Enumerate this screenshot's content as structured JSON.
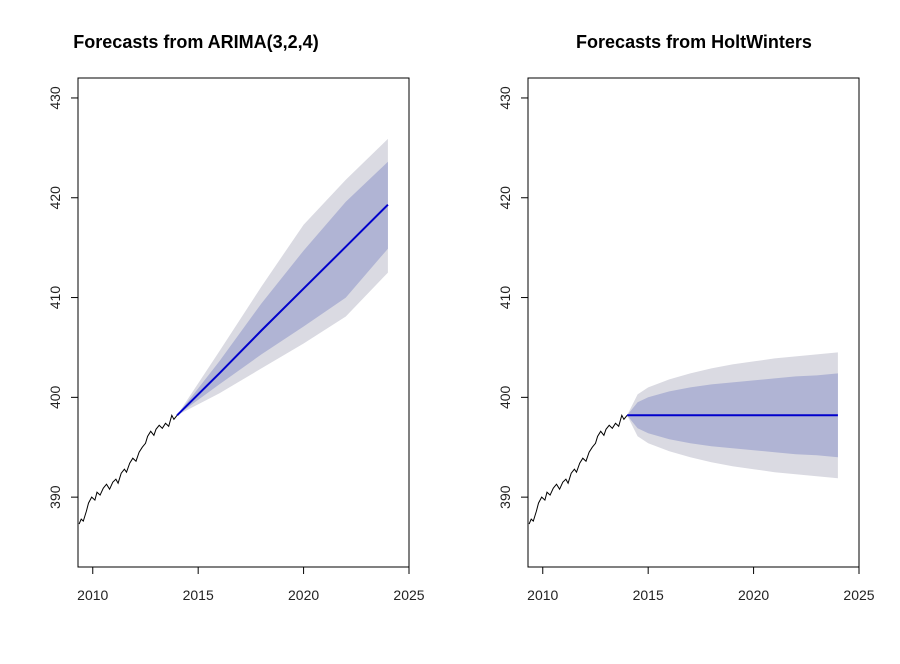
{
  "chart_data": [
    {
      "type": "line",
      "title": "Forecasts from ARIMA(3,2,4)",
      "xlabel": "",
      "ylabel": "",
      "xlim": [
        2009.3,
        2025.0
      ],
      "ylim": [
        383.0,
        432.0
      ],
      "xticks": [
        2010,
        2015,
        2020,
        2025
      ],
      "yticks": [
        390,
        400,
        410,
        420,
        430
      ],
      "grid": false,
      "history": {
        "x": [
          2009.35,
          2009.45,
          2009.55,
          2009.7,
          2009.8,
          2009.95,
          2010.1,
          2010.2,
          2010.35,
          2010.5,
          2010.65,
          2010.8,
          2010.95,
          2011.1,
          2011.2,
          2011.35,
          2011.5,
          2011.6,
          2011.75,
          2011.9,
          2012.05,
          2012.2,
          2012.35,
          2012.5,
          2012.6,
          2012.75,
          2012.9,
          2013.0,
          2013.15,
          2013.3,
          2013.45,
          2013.6,
          2013.75,
          2013.85,
          2014.0
        ],
        "y": [
          387.3,
          387.8,
          387.6,
          388.6,
          389.4,
          390.0,
          389.7,
          390.5,
          390.2,
          390.9,
          391.3,
          390.8,
          391.5,
          391.8,
          391.4,
          392.4,
          392.8,
          392.5,
          393.4,
          393.9,
          393.6,
          394.5,
          395.0,
          395.4,
          396.1,
          396.6,
          396.2,
          396.8,
          397.2,
          396.9,
          397.4,
          397.1,
          398.2,
          397.8,
          398.2
        ]
      },
      "forecast": {
        "x": [
          2014.0,
          2016.0,
          2018.0,
          2020.0,
          2022.0,
          2024.0
        ],
        "mean": [
          398.2,
          402.4,
          406.7,
          410.9,
          415.1,
          419.3
        ],
        "lo80": [
          398.2,
          401.3,
          404.3,
          407.1,
          410.0,
          414.9
        ],
        "hi80": [
          398.2,
          403.6,
          409.4,
          414.7,
          419.6,
          423.6
        ],
        "lo95": [
          398.2,
          400.4,
          402.9,
          405.4,
          408.1,
          412.5
        ],
        "hi95": [
          398.2,
          404.6,
          411.1,
          417.3,
          421.8,
          425.9
        ]
      },
      "colors": {
        "history": "#000000",
        "mean": "#0000cc",
        "band80": "#b0b4d4",
        "band95": "#dadae2"
      }
    },
    {
      "type": "line",
      "title": "Forecasts from HoltWinters",
      "xlabel": "",
      "ylabel": "",
      "xlim": [
        2009.3,
        2025.0
      ],
      "ylim": [
        383.0,
        432.0
      ],
      "xticks": [
        2010,
        2015,
        2020,
        2025
      ],
      "yticks": [
        390,
        400,
        410,
        420,
        430
      ],
      "grid": false,
      "history": {
        "x": [
          2009.35,
          2009.45,
          2009.55,
          2009.7,
          2009.8,
          2009.95,
          2010.1,
          2010.2,
          2010.35,
          2010.5,
          2010.65,
          2010.8,
          2010.95,
          2011.1,
          2011.2,
          2011.35,
          2011.5,
          2011.6,
          2011.75,
          2011.9,
          2012.05,
          2012.2,
          2012.35,
          2012.5,
          2012.6,
          2012.75,
          2012.9,
          2013.0,
          2013.15,
          2013.3,
          2013.45,
          2013.6,
          2013.75,
          2013.85,
          2014.0
        ],
        "y": [
          387.3,
          387.8,
          387.6,
          388.6,
          389.4,
          390.0,
          389.7,
          390.5,
          390.2,
          390.9,
          391.3,
          390.8,
          391.5,
          391.8,
          391.4,
          392.4,
          392.8,
          392.5,
          393.4,
          393.9,
          393.6,
          394.5,
          395.0,
          395.4,
          396.1,
          396.6,
          396.2,
          396.8,
          397.2,
          396.9,
          397.4,
          397.1,
          398.2,
          397.8,
          398.2
        ]
      },
      "forecast": {
        "x": [
          2014.0,
          2014.5,
          2015.0,
          2016.0,
          2017.0,
          2018.0,
          2019.0,
          2020.0,
          2021.0,
          2022.0,
          2023.0,
          2024.0
        ],
        "mean": [
          398.2,
          398.2,
          398.2,
          398.2,
          398.2,
          398.2,
          398.2,
          398.2,
          398.2,
          398.2,
          398.2,
          398.2
        ],
        "lo80": [
          398.2,
          396.9,
          396.4,
          395.8,
          395.4,
          395.1,
          394.9,
          394.7,
          394.5,
          394.3,
          394.2,
          394.0
        ],
        "hi80": [
          398.2,
          399.5,
          400.0,
          400.6,
          401.0,
          401.3,
          401.5,
          401.7,
          401.9,
          402.1,
          402.2,
          402.4
        ],
        "lo95": [
          398.2,
          396.1,
          395.4,
          394.6,
          394.0,
          393.5,
          393.1,
          392.8,
          392.5,
          392.3,
          392.1,
          391.9
        ],
        "hi95": [
          398.2,
          400.3,
          401.0,
          401.8,
          402.4,
          402.9,
          403.3,
          403.6,
          403.9,
          404.1,
          404.3,
          404.5
        ]
      },
      "colors": {
        "history": "#000000",
        "mean": "#0000cc",
        "band80": "#b0b4d4",
        "band95": "#dadae2"
      }
    }
  ]
}
